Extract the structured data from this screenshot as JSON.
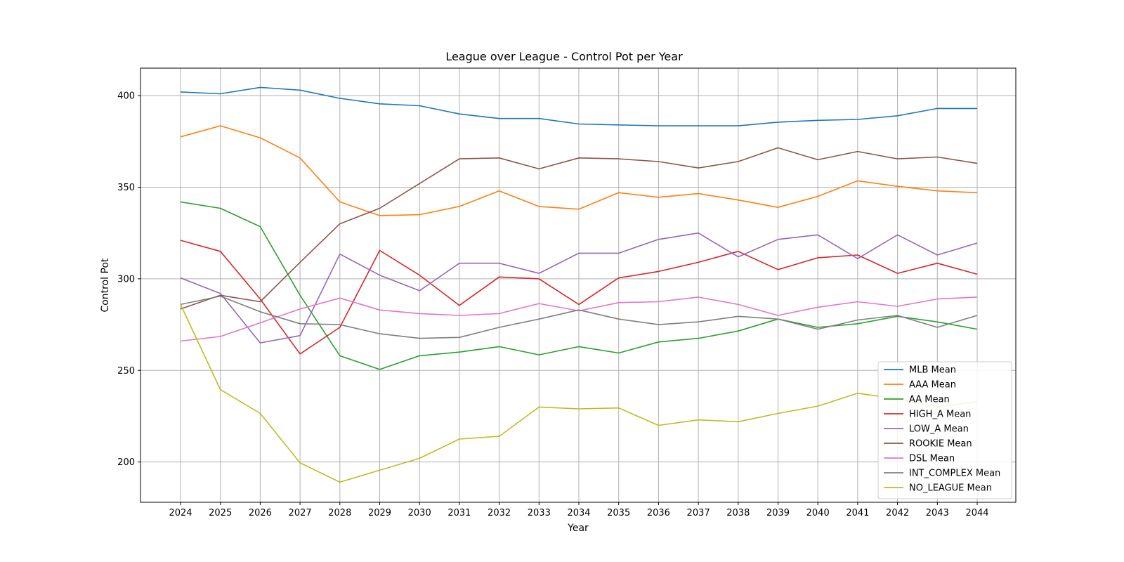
{
  "chart_data": {
    "type": "line",
    "title": "League over League - Control Pot per Year",
    "xlabel": "Year",
    "ylabel": "Control Pot",
    "ylim": [
      178,
      415
    ],
    "grid": true,
    "legend_position": "bottom-right",
    "x": [
      "2024",
      "2025",
      "2026",
      "2027",
      "2028",
      "2029",
      "2030",
      "2031",
      "2032",
      "2033",
      "2034",
      "2035",
      "2036",
      "2037",
      "2038",
      "2039",
      "2040",
      "2041",
      "2042",
      "2043",
      "2044"
    ],
    "yticks": [
      200,
      250,
      300,
      350,
      400
    ],
    "series": [
      {
        "name": "MLB Mean",
        "color": "#1f77b4",
        "values": [
          402,
          401,
          404.5,
          403,
          398.5,
          395.5,
          394.5,
          390,
          387.5,
          387.5,
          384.5,
          384,
          383.5,
          383.5,
          383.5,
          385.5,
          386.5,
          387,
          389,
          393,
          393
        ]
      },
      {
        "name": "AAA Mean",
        "color": "#ff7f0e",
        "values": [
          377.5,
          383.5,
          377,
          366,
          342,
          334.5,
          335,
          339.5,
          348,
          339.5,
          338,
          347,
          344.5,
          346.5,
          343,
          339,
          345,
          353.5,
          350.5,
          348,
          347
        ]
      },
      {
        "name": "AA Mean",
        "color": "#2ca02c",
        "values": [
          342,
          338.5,
          328.5,
          291,
          258,
          250.5,
          258,
          260,
          263,
          258.5,
          263,
          259.5,
          265.5,
          267.5,
          271.5,
          278,
          273.5,
          275.5,
          279.5,
          276.5,
          272.5
        ]
      },
      {
        "name": "HIGH_A Mean",
        "color": "#d62728",
        "values": [
          321,
          315,
          289,
          259,
          273.5,
          315.5,
          302,
          285.5,
          301,
          300,
          286,
          300.5,
          304,
          309,
          315,
          305,
          311.5,
          313,
          303,
          308.5,
          302.5
        ]
      },
      {
        "name": "LOW_A Mean",
        "color": "#9467bd",
        "values": [
          300.5,
          292,
          265,
          269,
          313.5,
          302,
          293.5,
          308.5,
          308.5,
          303,
          314,
          314,
          321.5,
          325,
          312,
          321.5,
          324,
          311,
          324,
          313,
          319.5
        ]
      },
      {
        "name": "ROOKIE Mean",
        "color": "#8c564b",
        "values": [
          283.5,
          291,
          287.5,
          309,
          330,
          338.5,
          352,
          365.5,
          366,
          360,
          366,
          365.5,
          364,
          360.5,
          364,
          371.5,
          365,
          369.5,
          365.5,
          366.5,
          363
        ]
      },
      {
        "name": "DSL Mean",
        "color": "#e377c2",
        "values": [
          266,
          268.5,
          276,
          283.5,
          289.5,
          283,
          281,
          280,
          281,
          286.5,
          282.5,
          287,
          287.5,
          290,
          286,
          280,
          284.5,
          287.5,
          285,
          289,
          290
        ]
      },
      {
        "name": "INT_COMPLEX Mean",
        "color": "#7f7f7f",
        "values": [
          286,
          290.5,
          282,
          275.5,
          275,
          270,
          267.5,
          268,
          273.5,
          278,
          283,
          278,
          275,
          276.5,
          279.5,
          278,
          272.5,
          277.5,
          280,
          273.5,
          280
        ]
      },
      {
        "name": "NO_LEAGUE Mean",
        "color": "#bcbd22",
        "values": [
          286,
          239.5,
          226.5,
          199.5,
          189,
          195.5,
          202,
          212.5,
          214,
          230,
          229,
          229.5,
          220,
          223,
          222,
          226.5,
          230.5,
          237.5,
          234.5,
          230,
          233
        ]
      }
    ]
  }
}
